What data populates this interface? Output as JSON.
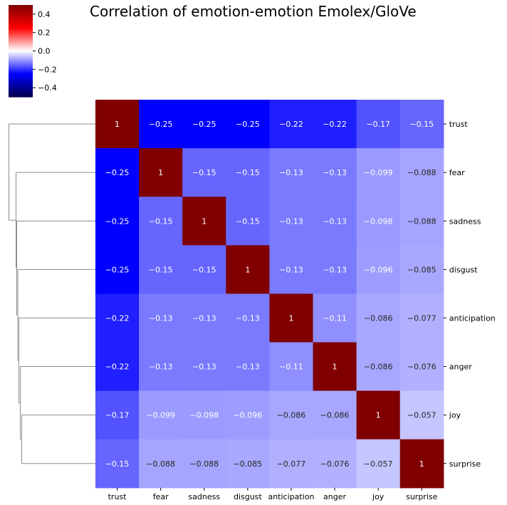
{
  "chart_data": {
    "type": "heatmap",
    "title": "Correlation of emotion-emotion Emolex/GloVe",
    "row_labels": [
      "trust",
      "fear",
      "sadness",
      "disgust",
      "anticipation",
      "anger",
      "joy",
      "surprise"
    ],
    "col_labels": [
      "trust",
      "fear",
      "sadness",
      "disgust",
      "anticipation",
      "anger",
      "joy",
      "surprise"
    ],
    "values": [
      [
        1,
        -0.25,
        -0.25,
        -0.25,
        -0.22,
        -0.22,
        -0.17,
        -0.15
      ],
      [
        -0.25,
        1,
        -0.15,
        -0.15,
        -0.13,
        -0.13,
        -0.099,
        -0.088
      ],
      [
        -0.25,
        -0.15,
        1,
        -0.15,
        -0.13,
        -0.13,
        -0.098,
        -0.088
      ],
      [
        -0.25,
        -0.15,
        -0.15,
        1,
        -0.13,
        -0.13,
        -0.096,
        -0.085
      ],
      [
        -0.22,
        -0.13,
        -0.13,
        -0.13,
        1,
        -0.11,
        -0.086,
        -0.077
      ],
      [
        -0.22,
        -0.13,
        -0.13,
        -0.13,
        -0.11,
        1,
        -0.086,
        -0.076
      ],
      [
        -0.17,
        -0.099,
        -0.098,
        -0.096,
        -0.086,
        -0.086,
        1,
        -0.057
      ],
      [
        -0.15,
        -0.088,
        -0.088,
        -0.085,
        -0.077,
        -0.076,
        -0.057,
        1
      ]
    ],
    "colormap": "seismic",
    "vmin": -0.5,
    "vmax": 0.5,
    "colorbar": {
      "ticks": [
        0.4,
        0.2,
        0.0,
        -0.2,
        -0.4
      ],
      "tick_labels": [
        "0.4",
        "0.2",
        "0.0",
        "−0.2",
        "−0.4"
      ],
      "placement": "top-left"
    },
    "row_dendrogram": true,
    "col_dendrogram": false,
    "annotated": true
  }
}
